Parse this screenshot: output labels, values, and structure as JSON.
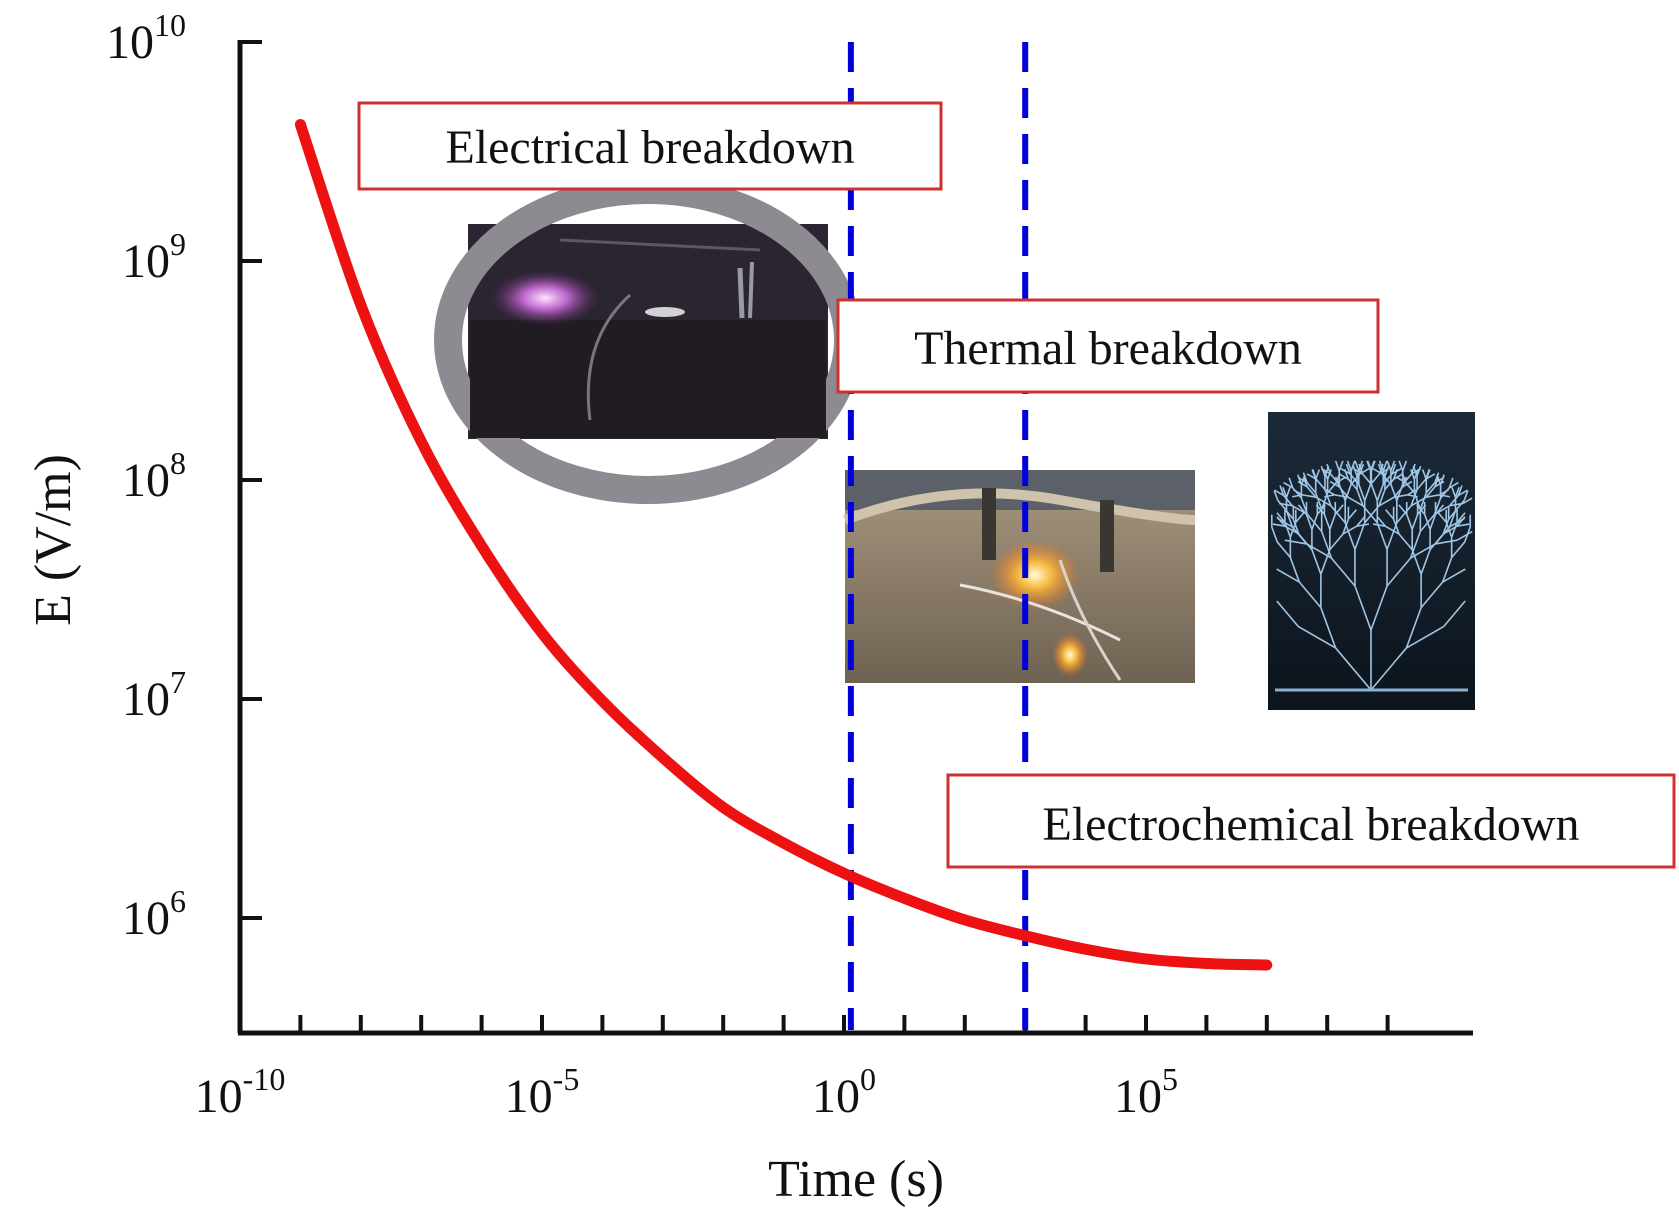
{
  "chart_data": {
    "type": "line",
    "xlabel": "Time (s)",
    "ylabel": "E (V/m)",
    "xscale": "log",
    "yscale": "log",
    "xlim": [
      1e-10,
      1000000000.0
    ],
    "ylim": [
      200000,
      10000000000.0
    ],
    "x_ticks": [
      {
        "value": 1e-10,
        "base": "10",
        "exp": "-10"
      },
      {
        "value": 1e-05,
        "base": "10",
        "exp": "-5"
      },
      {
        "value": 1,
        "base": "10",
        "exp": "0"
      },
      {
        "value": 100000,
        "base": "10",
        "exp": "5"
      }
    ],
    "y_ticks": [
      {
        "value": 1000000,
        "base": "10",
        "exp": "6"
      },
      {
        "value": 10000000,
        "base": "10",
        "exp": "7"
      },
      {
        "value": 100000000,
        "base": "10",
        "exp": "8"
      },
      {
        "value": 1000000000,
        "base": "10",
        "exp": "9"
      },
      {
        "value": 10000000000,
        "base": "10",
        "exp": "10"
      }
    ],
    "x_minor_tick_step_decades": 1,
    "grid": false,
    "series": [
      {
        "color": "#ee1111",
        "x": [
          1e-09,
          1e-08,
          1e-07,
          1e-06,
          1e-05,
          0.0001,
          0.001,
          0.01,
          0.1,
          1,
          10,
          100,
          1000,
          10000,
          100000,
          1000000,
          10000000
        ],
        "y": [
          4200000000,
          630000000,
          150000000,
          50000000,
          20000000,
          9800000,
          5400000,
          3200000,
          2200000,
          1600000,
          1230000,
          980000,
          830000,
          720000,
          650000,
          620000,
          610000
        ]
      }
    ],
    "vlines": [
      {
        "x": 1.3,
        "color": "#0000dd",
        "style": "dashed"
      },
      {
        "x": 1000,
        "color": "#0000dd",
        "style": "dashed"
      }
    ],
    "annotations": [
      {
        "text": "Electrical breakdown",
        "border_color": "#d03030"
      },
      {
        "text": "Thermal breakdown",
        "border_color": "#d03030"
      },
      {
        "text": "Electrochemical breakdown",
        "border_color": "#d03030"
      }
    ],
    "photos": [
      {
        "subject": "violet-plasma-discharge-photo"
      },
      {
        "subject": "glowing-thermal-breakdown-photo"
      },
      {
        "subject": "electrical-treeing-photo"
      }
    ]
  }
}
